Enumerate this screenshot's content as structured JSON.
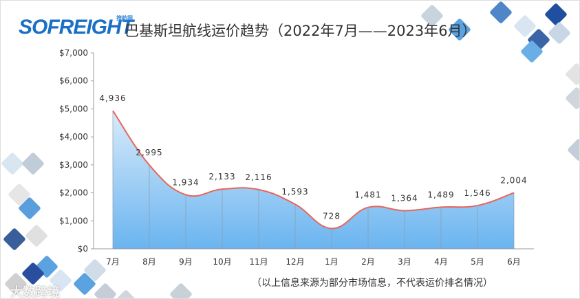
{
  "logo": {
    "text": "SOFREIGHT",
    "sub": "搜航网"
  },
  "watermark": "大数跨境",
  "note": "（以上信息来源为部分市场信息，不代表运价排名情况）",
  "colors": {
    "line": "#e8665a",
    "fill_top": "#d9ebfa",
    "fill_bottom": "#6ab4f0",
    "axis": "#999"
  },
  "chart_data": {
    "type": "area",
    "title": "巴基斯坦航线运价趋势（2022年7月——2023年6月）",
    "categories": [
      "7月",
      "8月",
      "9月",
      "10月",
      "11月",
      "12月",
      "1月",
      "2月",
      "3月",
      "4月",
      "5月",
      "6月"
    ],
    "values": [
      4936,
      2995,
      1934,
      2133,
      2116,
      1593,
      728,
      1481,
      1364,
      1489,
      1546,
      2004
    ],
    "data_labels": [
      "4,936",
      "2,995",
      "1,934",
      "2,133",
      "2,116",
      "1,593",
      "728",
      "1,481",
      "1,364",
      "1,489",
      "1,546",
      "2,004"
    ],
    "yticks": [
      "$0",
      "$1,000",
      "$2,000",
      "$3,000",
      "$4,000",
      "$5,000",
      "$6,000",
      "$7,000"
    ],
    "ylim": [
      0,
      7000
    ],
    "smooth": true,
    "grid": false
  }
}
